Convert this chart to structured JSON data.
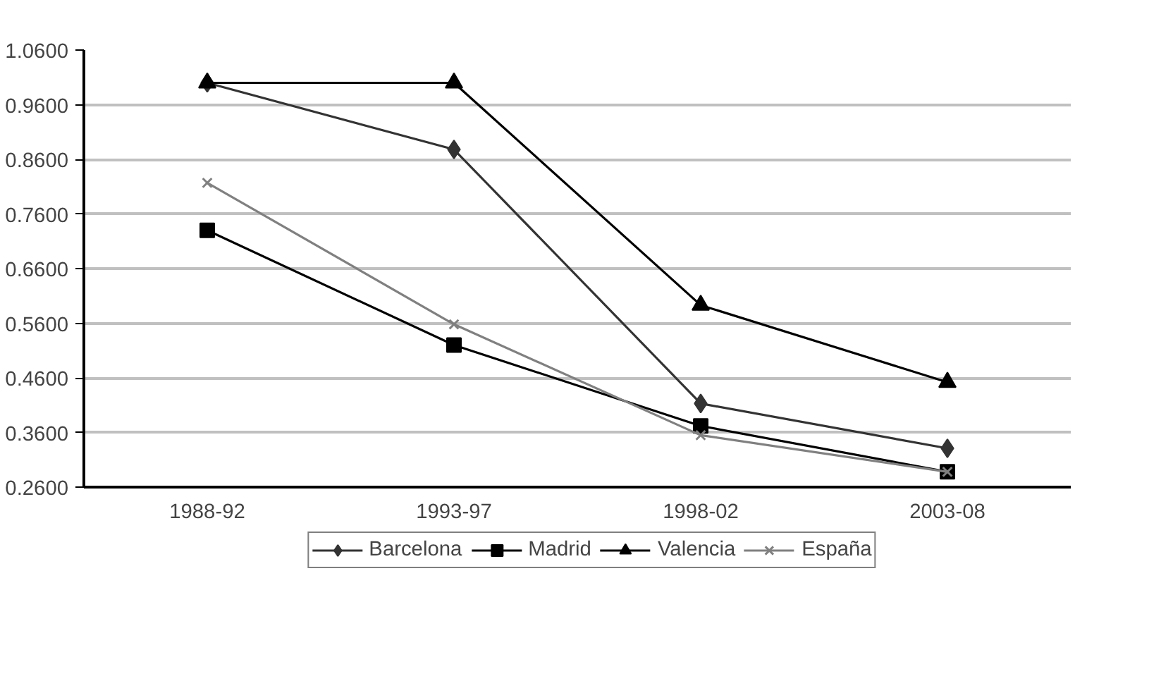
{
  "chart_data": {
    "type": "line",
    "categories": [
      "1988-92",
      "1993-97",
      "1998-02",
      "2003-08"
    ],
    "series": [
      {
        "name": "Barcelona",
        "color": "#333333",
        "marker": "diamond",
        "values": [
          1.0,
          0.878,
          0.413,
          0.331
        ]
      },
      {
        "name": "Madrid",
        "color": "#000000",
        "marker": "square",
        "values": [
          0.73,
          0.52,
          0.372,
          0.288
        ]
      },
      {
        "name": "Valencia",
        "color": "#000000",
        "marker": "triangle",
        "values": [
          1.0,
          1.0,
          0.593,
          0.452
        ]
      },
      {
        "name": "España",
        "color": "#808080",
        "marker": "cross",
        "values": [
          0.817,
          0.558,
          0.355,
          0.288
        ]
      }
    ],
    "ylim": [
      0.26,
      1.06
    ],
    "yticks": [
      {
        "value": 0.26,
        "label": "0.2600"
      },
      {
        "value": 0.36,
        "label": "0.3600"
      },
      {
        "value": 0.46,
        "label": "0.4600"
      },
      {
        "value": 0.56,
        "label": "0.5600"
      },
      {
        "value": 0.66,
        "label": "0.6600"
      },
      {
        "value": 0.76,
        "label": "0.7600"
      },
      {
        "value": 0.86,
        "label": "0.8600"
      },
      {
        "value": 0.96,
        "label": "0.9600"
      },
      {
        "value": 1.06,
        "label": "1.0600"
      }
    ],
    "grid": "y",
    "legend": "bottom",
    "line_style": "solid"
  }
}
